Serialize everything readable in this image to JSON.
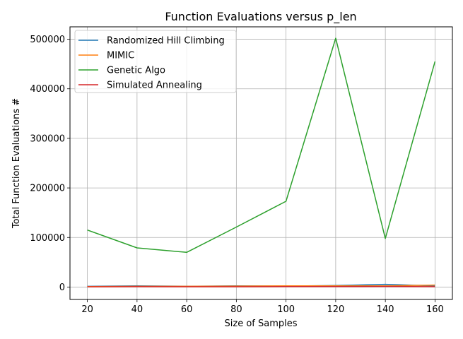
{
  "chart_data": {
    "type": "line",
    "title": "Function Evaluations versus p_len",
    "xlabel": "Size of Samples",
    "ylabel": "Total Function Evaluations #",
    "x": [
      20,
      40,
      60,
      80,
      100,
      120,
      140,
      160
    ],
    "xticks": [
      "20",
      "40",
      "60",
      "80",
      "100",
      "120",
      "140",
      "160"
    ],
    "yticks": [
      "0",
      "100000",
      "200000",
      "300000",
      "400000",
      "500000"
    ],
    "xlim": [
      13,
      167
    ],
    "ylim": [
      -25000,
      525000
    ],
    "grid": true,
    "legend_position": "upper-left",
    "series": [
      {
        "name": "Randomized Hill Climbing",
        "color": "#1f77b4",
        "values": [
          1500,
          2500,
          1500,
          2500,
          2000,
          3000,
          5500,
          2500
        ]
      },
      {
        "name": "MIMIC",
        "color": "#ff7f0e",
        "values": [
          1000,
          1500,
          1500,
          2000,
          2500,
          2500,
          2500,
          4000
        ]
      },
      {
        "name": "Genetic Algo",
        "color": "#2ca02c",
        "values": [
          115000,
          79000,
          70000,
          121000,
          173000,
          502000,
          98000,
          455000
        ]
      },
      {
        "name": "Simulated Annealing",
        "color": "#d62728",
        "values": [
          500,
          800,
          600,
          700,
          900,
          1000,
          1200,
          800
        ]
      }
    ]
  }
}
